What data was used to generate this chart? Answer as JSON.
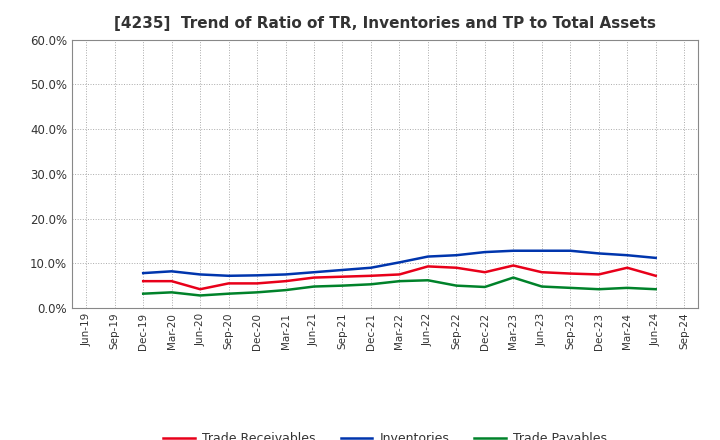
{
  "title": "[4235]  Trend of Ratio of TR, Inventories and TP to Total Assets",
  "x_labels": [
    "Jun-19",
    "Sep-19",
    "Dec-19",
    "Mar-20",
    "Jun-20",
    "Sep-20",
    "Dec-20",
    "Mar-21",
    "Jun-21",
    "Sep-21",
    "Dec-21",
    "Mar-22",
    "Jun-22",
    "Sep-22",
    "Dec-22",
    "Mar-23",
    "Jun-23",
    "Sep-23",
    "Dec-23",
    "Mar-24",
    "Jun-24",
    "Sep-24"
  ],
  "trade_receivables": [
    null,
    null,
    0.06,
    0.06,
    0.042,
    0.055,
    0.055,
    0.06,
    0.068,
    0.07,
    0.072,
    0.075,
    0.093,
    0.09,
    0.08,
    0.095,
    0.08,
    0.077,
    0.075,
    0.09,
    0.072,
    null
  ],
  "inventories": [
    null,
    null,
    0.078,
    0.082,
    0.075,
    0.072,
    0.073,
    0.075,
    0.08,
    0.085,
    0.09,
    0.102,
    0.115,
    0.118,
    0.125,
    0.128,
    0.128,
    0.128,
    0.122,
    0.118,
    0.112,
    null
  ],
  "trade_payables": [
    null,
    null,
    0.032,
    0.035,
    0.028,
    0.032,
    0.035,
    0.04,
    0.048,
    0.05,
    0.053,
    0.06,
    0.062,
    0.05,
    0.047,
    0.068,
    0.048,
    0.045,
    0.042,
    0.045,
    0.042,
    null
  ],
  "tr_color": "#e8001a",
  "inv_color": "#0035ad",
  "tp_color": "#00822a",
  "ylim": [
    0.0,
    0.6
  ],
  "yticks": [
    0.0,
    0.1,
    0.2,
    0.3,
    0.4,
    0.5,
    0.6
  ],
  "bg_color": "#ffffff",
  "plot_bg_color": "#ffffff",
  "grid_color": "#aaaaaa",
  "title_color": "#333333",
  "tick_color": "#333333",
  "legend_labels": [
    "Trade Receivables",
    "Inventories",
    "Trade Payables"
  ],
  "line_width": 1.8
}
